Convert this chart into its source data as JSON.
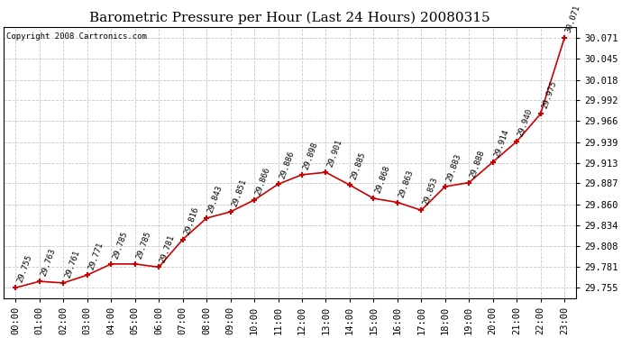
{
  "title": "Barometric Pressure per Hour (Last 24 Hours) 20080315",
  "copyright": "Copyright 2008 Cartronics.com",
  "hours": [
    "00:00",
    "01:00",
    "02:00",
    "03:00",
    "04:00",
    "05:00",
    "06:00",
    "07:00",
    "08:00",
    "09:00",
    "10:00",
    "11:00",
    "12:00",
    "13:00",
    "14:00",
    "15:00",
    "16:00",
    "17:00",
    "18:00",
    "19:00",
    "20:00",
    "21:00",
    "22:00",
    "23:00"
  ],
  "values": [
    29.755,
    29.763,
    29.761,
    29.771,
    29.785,
    29.785,
    29.781,
    29.816,
    29.843,
    29.851,
    29.866,
    29.886,
    29.898,
    29.901,
    29.885,
    29.868,
    29.863,
    29.853,
    29.883,
    29.888,
    29.914,
    29.94,
    29.975,
    30.071
  ],
  "line_color": "#cc0000",
  "marker_color": "#cc0000",
  "bg_color": "#ffffff",
  "grid_color": "#c8c8c8",
  "ylim_min": 29.742,
  "ylim_max": 30.085,
  "yticks": [
    29.755,
    29.781,
    29.808,
    29.834,
    29.86,
    29.887,
    29.913,
    29.939,
    29.966,
    29.992,
    30.018,
    30.045,
    30.071
  ],
  "title_fontsize": 11,
  "copyright_fontsize": 6.5,
  "tick_fontsize": 7.5,
  "annotation_fontsize": 6.5
}
